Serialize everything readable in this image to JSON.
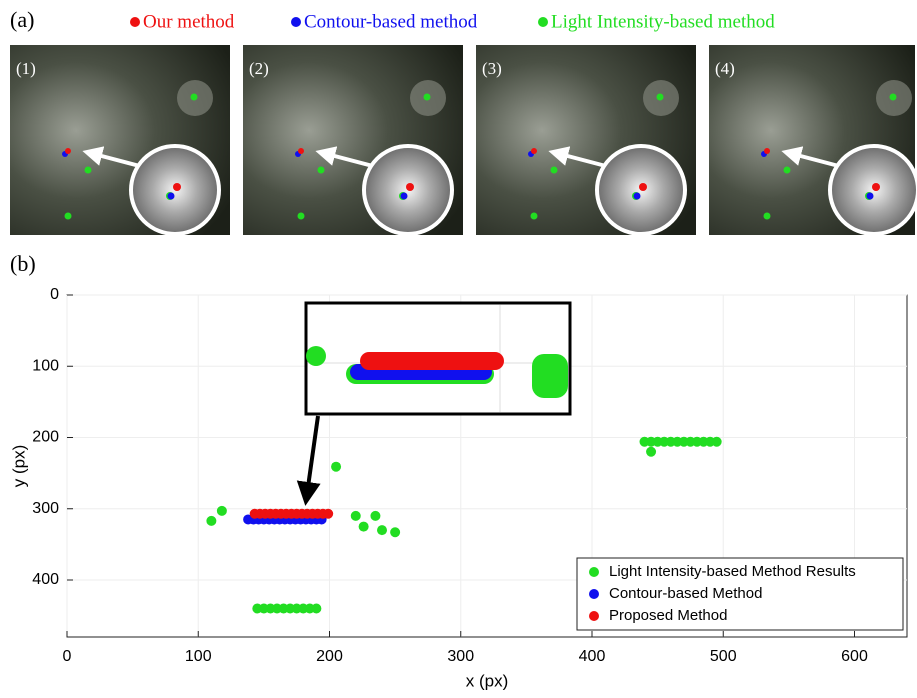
{
  "panel_a": {
    "label": "(a)",
    "legend": [
      {
        "name": "Our method",
        "color": "#ee1111"
      },
      {
        "name": "Contour-based method",
        "color": "#1010ee"
      },
      {
        "name": "Light Intensity-based method",
        "color": "#22dd22"
      }
    ],
    "images": [
      "(1)",
      "(2)",
      "(3)",
      "(4)"
    ]
  },
  "chart_data": {
    "type": "scatter",
    "panel_label": "(b)",
    "x_label": "x (px)",
    "y_label": "y (px)",
    "xlim": [
      0,
      640
    ],
    "ylim": [
      0,
      480
    ],
    "y_inverted": true,
    "xticks": [
      0,
      100,
      200,
      300,
      400,
      500,
      600
    ],
    "yticks": [
      0,
      100,
      200,
      300,
      400
    ],
    "grid": true,
    "legend": "lower right",
    "series": [
      {
        "name": "Light Intensity-based Method Results",
        "color": "#22dd22",
        "x": [
          110,
          118,
          205,
          220,
          226,
          235,
          240,
          250,
          445,
          145,
          150,
          155,
          160,
          165,
          170,
          175,
          180,
          185,
          190,
          440,
          445,
          450,
          455,
          460,
          465,
          470,
          475,
          480,
          485,
          490,
          495
        ],
        "values": [
          317,
          303,
          241,
          310,
          325,
          310,
          330,
          333,
          220,
          440,
          440,
          440,
          440,
          440,
          440,
          440,
          440,
          440,
          440,
          206,
          206,
          206,
          206,
          206,
          206,
          206,
          206,
          206,
          206,
          206,
          206
        ]
      },
      {
        "name": "Contour-based Method",
        "color": "#1010ee",
        "x": [
          138,
          142,
          146,
          150,
          154,
          158,
          162,
          166,
          170,
          174,
          178,
          182,
          186,
          190,
          194
        ],
        "values": [
          315,
          315,
          315,
          315,
          315,
          315,
          315,
          315,
          315,
          315,
          315,
          315,
          315,
          315,
          315
        ]
      },
      {
        "name": "Proposed Method",
        "color": "#ee1111",
        "x": [
          143,
          147,
          151,
          155,
          159,
          163,
          167,
          171,
          175,
          179,
          183,
          187,
          191,
          195,
          199
        ],
        "values": [
          307,
          307,
          307,
          307,
          307,
          307,
          307,
          307,
          307,
          307,
          307,
          307,
          307,
          307,
          307
        ]
      }
    ]
  }
}
